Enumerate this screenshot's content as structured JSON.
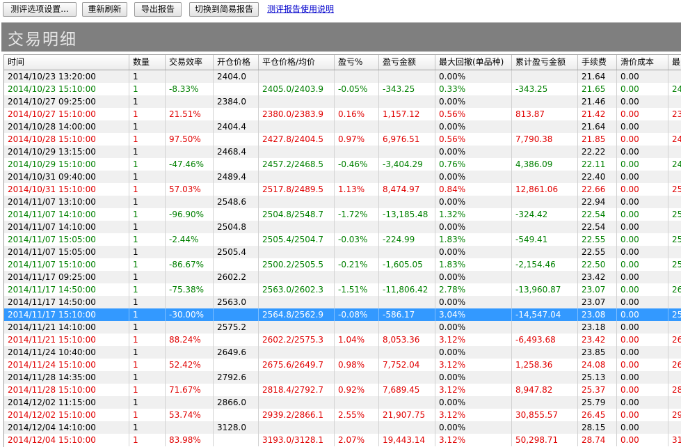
{
  "toolbar": {
    "settings_label": "测评选项设置...",
    "refresh_label": "重新刷新",
    "export_label": "导出报告",
    "switch_label": "切换到简易报告",
    "help_link": "测评报告使用说明"
  },
  "title": "交易明细",
  "columns": [
    "时间",
    "数量",
    "交易效率",
    "开仓价格",
    "平仓价格/均价",
    "盈亏%",
    "盈亏金额",
    "最大回撤(单品种)",
    "累计盈亏金额",
    "手续费",
    "滑价成本",
    "最"
  ],
  "rows": [
    {
      "style": "plain",
      "cells": [
        "2014/10/23 13:20:00",
        "1",
        "",
        "2404.0",
        "",
        "",
        "",
        "0.00%",
        "",
        "21.64",
        "0.00",
        ""
      ]
    },
    {
      "style": "green",
      "cells": [
        "2014/10/23 15:10:00",
        "1",
        "-8.33%",
        "",
        "2405.0/2403.9",
        "-0.05%",
        "-343.25",
        "0.33%",
        "-343.25",
        "21.65",
        "0.00",
        "24"
      ]
    },
    {
      "style": "plain",
      "cells": [
        "2014/10/27 09:25:00",
        "1",
        "",
        "2384.0",
        "",
        "",
        "",
        "0.00%",
        "",
        "21.46",
        "0.00",
        ""
      ]
    },
    {
      "style": "red",
      "cells": [
        "2014/10/27 15:10:00",
        "1",
        "21.51%",
        "",
        "2380.0/2383.9",
        "0.16%",
        "1,157.12",
        "0.56%",
        "813.87",
        "21.42",
        "0.00",
        "23"
      ]
    },
    {
      "style": "plain",
      "cells": [
        "2014/10/28 14:00:00",
        "1",
        "",
        "2404.4",
        "",
        "",
        "",
        "0.00%",
        "",
        "21.64",
        "0.00",
        ""
      ]
    },
    {
      "style": "red",
      "cells": [
        "2014/10/28 15:10:00",
        "1",
        "97.50%",
        "",
        "2427.8/2404.5",
        "0.97%",
        "6,976.51",
        "0.56%",
        "7,790.38",
        "21.85",
        "0.00",
        "24"
      ]
    },
    {
      "style": "plain",
      "cells": [
        "2014/10/29 13:15:00",
        "1",
        "",
        "2468.4",
        "",
        "",
        "",
        "0.00%",
        "",
        "22.22",
        "0.00",
        ""
      ]
    },
    {
      "style": "green",
      "cells": [
        "2014/10/29 15:10:00",
        "1",
        "-47.46%",
        "",
        "2457.2/2468.5",
        "-0.46%",
        "-3,404.29",
        "0.76%",
        "4,386.09",
        "22.11",
        "0.00",
        "24"
      ]
    },
    {
      "style": "plain",
      "cells": [
        "2014/10/31 09:40:00",
        "1",
        "",
        "2489.4",
        "",
        "",
        "",
        "0.00%",
        "",
        "22.40",
        "0.00",
        ""
      ]
    },
    {
      "style": "red",
      "cells": [
        "2014/10/31 15:10:00",
        "1",
        "57.03%",
        "",
        "2517.8/2489.5",
        "1.13%",
        "8,474.97",
        "0.84%",
        "12,861.06",
        "22.66",
        "0.00",
        "25"
      ]
    },
    {
      "style": "plain",
      "cells": [
        "2014/11/07 13:10:00",
        "1",
        "",
        "2548.6",
        "",
        "",
        "",
        "0.00%",
        "",
        "22.94",
        "0.00",
        ""
      ]
    },
    {
      "style": "green",
      "cells": [
        "2014/11/07 14:10:00",
        "1",
        "-96.90%",
        "",
        "2504.8/2548.7",
        "-1.72%",
        "-13,185.48",
        "1.32%",
        "-324.42",
        "22.54",
        "0.00",
        "25"
      ]
    },
    {
      "style": "plain",
      "cells": [
        "2014/11/07 14:10:00",
        "1",
        "",
        "2504.8",
        "",
        "",
        "",
        "0.00%",
        "",
        "22.54",
        "0.00",
        ""
      ]
    },
    {
      "style": "green",
      "cells": [
        "2014/11/07 15:05:00",
        "1",
        "-2.44%",
        "",
        "2505.4/2504.7",
        "-0.03%",
        "-224.99",
        "1.83%",
        "-549.41",
        "22.55",
        "0.00",
        "25"
      ]
    },
    {
      "style": "plain",
      "cells": [
        "2014/11/07 15:05:00",
        "1",
        "",
        "2505.4",
        "",
        "",
        "",
        "0.00%",
        "",
        "22.55",
        "0.00",
        ""
      ]
    },
    {
      "style": "green",
      "cells": [
        "2014/11/07 15:10:00",
        "1",
        "-86.67%",
        "",
        "2500.2/2505.5",
        "-0.21%",
        "-1,605.05",
        "1.83%",
        "-2,154.46",
        "22.50",
        "0.00",
        "25"
      ]
    },
    {
      "style": "plain",
      "cells": [
        "2014/11/17 09:25:00",
        "1",
        "",
        "2602.2",
        "",
        "",
        "",
        "0.00%",
        "",
        "23.42",
        "0.00",
        ""
      ]
    },
    {
      "style": "green",
      "cells": [
        "2014/11/17 14:50:00",
        "1",
        "-75.38%",
        "",
        "2563.0/2602.3",
        "-1.51%",
        "-11,806.42",
        "2.78%",
        "-13,960.87",
        "23.07",
        "0.00",
        "26"
      ]
    },
    {
      "style": "plain",
      "cells": [
        "2014/11/17 14:50:00",
        "1",
        "",
        "2563.0",
        "",
        "",
        "",
        "0.00%",
        "",
        "23.07",
        "0.00",
        ""
      ]
    },
    {
      "style": "sel",
      "cells": [
        "2014/11/17 15:10:00",
        "1",
        "-30.00%",
        "",
        "2564.8/2562.9",
        "-0.08%",
        "-586.17",
        "3.04%",
        "-14,547.04",
        "23.08",
        "0.00",
        "25"
      ]
    },
    {
      "style": "plain",
      "cells": [
        "2014/11/21 14:10:00",
        "1",
        "",
        "2575.2",
        "",
        "",
        "",
        "0.00%",
        "",
        "23.18",
        "0.00",
        ""
      ]
    },
    {
      "style": "red",
      "cells": [
        "2014/11/21 15:10:00",
        "1",
        "88.24%",
        "",
        "2602.2/2575.3",
        "1.04%",
        "8,053.36",
        "3.12%",
        "-6,493.68",
        "23.42",
        "0.00",
        "26"
      ]
    },
    {
      "style": "plain",
      "cells": [
        "2014/11/24 10:40:00",
        "1",
        "",
        "2649.6",
        "",
        "",
        "",
        "0.00%",
        "",
        "23.85",
        "0.00",
        ""
      ]
    },
    {
      "style": "red",
      "cells": [
        "2014/11/24 15:10:00",
        "1",
        "52.42%",
        "",
        "2675.6/2649.7",
        "0.98%",
        "7,752.04",
        "3.12%",
        "1,258.36",
        "24.08",
        "0.00",
        "26"
      ]
    },
    {
      "style": "plain",
      "cells": [
        "2014/11/28 14:35:00",
        "1",
        "",
        "2792.6",
        "",
        "",
        "",
        "0.00%",
        "",
        "25.13",
        "0.00",
        ""
      ]
    },
    {
      "style": "red",
      "cells": [
        "2014/11/28 15:10:00",
        "1",
        "71.67%",
        "",
        "2818.4/2792.7",
        "0.92%",
        "7,689.45",
        "3.12%",
        "8,947.82",
        "25.37",
        "0.00",
        "28"
      ]
    },
    {
      "style": "plain",
      "cells": [
        "2014/12/02 11:15:00",
        "1",
        "",
        "2866.0",
        "",
        "",
        "",
        "0.00%",
        "",
        "25.79",
        "0.00",
        ""
      ]
    },
    {
      "style": "red",
      "cells": [
        "2014/12/02 15:10:00",
        "1",
        "53.74%",
        "",
        "2939.2/2866.1",
        "2.55%",
        "21,907.75",
        "3.12%",
        "30,855.57",
        "26.45",
        "0.00",
        "29"
      ]
    },
    {
      "style": "plain",
      "cells": [
        "2014/12/04 14:10:00",
        "1",
        "",
        "3128.0",
        "",
        "",
        "",
        "0.00%",
        "",
        "28.15",
        "0.00",
        ""
      ]
    },
    {
      "style": "red",
      "cells": [
        "2014/12/04 15:10:00",
        "1",
        "83.98%",
        "",
        "3193.0/3128.1",
        "2.07%",
        "19,443.14",
        "3.12%",
        "50,298.71",
        "28.74",
        "0.00",
        "31"
      ]
    }
  ]
}
